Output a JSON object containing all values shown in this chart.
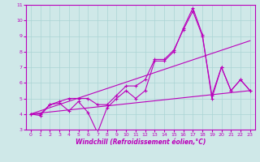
{
  "xlabel": "Windchill (Refroidissement éolien,°C)",
  "bg_color": "#cfe8e8",
  "line_color": "#bb00bb",
  "grid_color": "#aad4d4",
  "xlim": [
    -0.5,
    23.5
  ],
  "ylim": [
    3,
    11
  ],
  "xticks": [
    0,
    1,
    2,
    3,
    4,
    5,
    6,
    7,
    8,
    9,
    10,
    11,
    12,
    13,
    14,
    15,
    16,
    17,
    18,
    19,
    20,
    21,
    22,
    23
  ],
  "yticks": [
    3,
    4,
    5,
    6,
    7,
    8,
    9,
    10,
    11
  ],
  "line1_x": [
    0,
    1,
    2,
    3,
    4,
    5,
    6,
    7,
    8,
    9,
    10,
    11,
    12,
    13,
    14,
    15,
    16,
    17,
    18,
    19,
    20,
    21,
    22,
    23
  ],
  "line1_y": [
    4.0,
    3.9,
    4.6,
    4.7,
    4.2,
    4.8,
    4.1,
    2.8,
    4.4,
    5.0,
    5.5,
    5.0,
    5.5,
    7.4,
    7.4,
    8.0,
    9.5,
    10.8,
    9.1,
    5.0,
    7.0,
    5.5,
    6.2,
    5.5
  ],
  "line2_x": [
    0,
    23
  ],
  "line2_y": [
    4.0,
    8.7
  ],
  "line3_x": [
    0,
    23
  ],
  "line3_y": [
    4.0,
    5.5
  ],
  "line4_x": [
    0,
    1,
    2,
    3,
    4,
    5,
    6,
    7,
    8,
    9,
    10,
    11,
    12,
    13,
    14,
    15,
    16,
    17,
    18,
    19,
    20,
    21,
    22,
    23
  ],
  "line4_y": [
    4.0,
    4.0,
    4.6,
    4.8,
    5.0,
    5.0,
    5.0,
    4.6,
    4.6,
    5.2,
    5.8,
    5.8,
    6.2,
    7.5,
    7.5,
    8.1,
    9.4,
    10.6,
    9.0,
    5.2,
    7.0,
    5.5,
    6.2,
    5.5
  ]
}
